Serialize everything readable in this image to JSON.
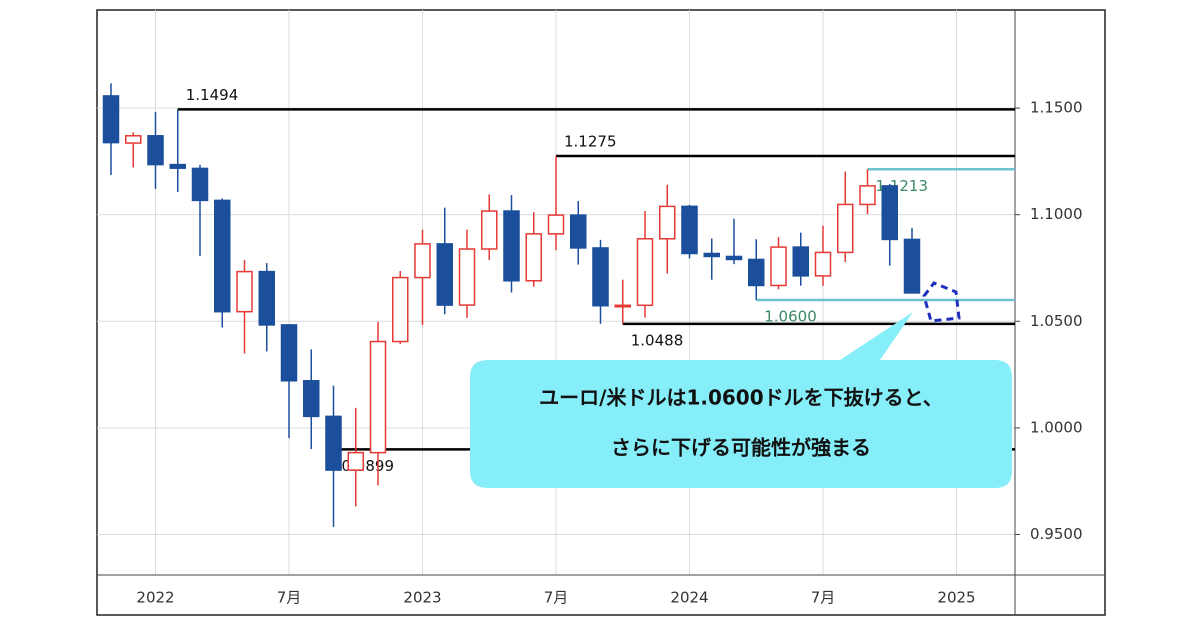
{
  "chart_data": {
    "type": "candlestick",
    "x": [
      "2021-11",
      "2021-12",
      "2022-01",
      "2022-02",
      "2022-03",
      "2022-04",
      "2022-05",
      "2022-06",
      "2022-07",
      "2022-08",
      "2022-09",
      "2022-10",
      "2022-11",
      "2022-12",
      "2023-01",
      "2023-02",
      "2023-03",
      "2023-04",
      "2023-05",
      "2023-06",
      "2023-07",
      "2023-08",
      "2023-09",
      "2023-10",
      "2023-11",
      "2023-12",
      "2024-01",
      "2024-02",
      "2024-03",
      "2024-04",
      "2024-05",
      "2024-06",
      "2024-07",
      "2024-08",
      "2024-09",
      "2024-10",
      "2024-11"
    ],
    "open": [
      1.1557,
      1.1336,
      1.137,
      1.1235,
      1.1217,
      1.1067,
      1.0545,
      1.0733,
      1.0483,
      1.0221,
      1.0054,
      0.9802,
      0.9884,
      1.0405,
      1.0705,
      1.0863,
      1.0576,
      1.0839,
      1.1017,
      1.069,
      1.091,
      1.0998,
      1.0844,
      1.0573,
      1.0575,
      1.0887,
      1.1039,
      1.0818,
      1.0804,
      1.079,
      1.0668,
      1.0848,
      1.0713,
      1.0823,
      1.1048,
      1.1135,
      1.0884
    ],
    "high": [
      1.1616,
      1.1386,
      1.1482,
      1.1494,
      1.1234,
      1.1076,
      1.0787,
      1.0773,
      1.0486,
      1.0368,
      1.0198,
      1.0094,
      1.0497,
      1.0736,
      1.0929,
      1.1033,
      1.093,
      1.1095,
      1.1092,
      1.1012,
      1.1275,
      1.1064,
      1.0882,
      1.0695,
      1.1017,
      1.114,
      1.1046,
      1.0888,
      1.0981,
      1.0885,
      1.0895,
      1.0916,
      1.0948,
      1.1202,
      1.1213,
      1.1144,
      1.0937
    ],
    "low": [
      1.1186,
      1.1222,
      1.1121,
      1.1106,
      1.0806,
      1.0471,
      1.0349,
      1.0359,
      0.9952,
      0.9901,
      0.9536,
      0.9632,
      0.973,
      1.0393,
      1.0483,
      1.0533,
      1.0516,
      1.0788,
      1.0635,
      1.0662,
      1.0834,
      1.0766,
      1.0488,
      1.0488,
      1.0517,
      1.0724,
      1.0795,
      1.0695,
      1.0768,
      1.06,
      1.065,
      1.0667,
      1.0666,
      1.0778,
      1.1002,
      1.0761,
      1.063
    ],
    "close": [
      1.1338,
      1.137,
      1.1235,
      1.1218,
      1.1067,
      1.0545,
      1.0733,
      1.0483,
      1.0221,
      1.0054,
      0.9802,
      0.9884,
      1.0405,
      1.0705,
      1.0863,
      1.0576,
      1.0839,
      1.1017,
      1.069,
      1.091,
      1.0998,
      1.0844,
      1.0573,
      1.0575,
      1.0887,
      1.1039,
      1.0818,
      1.0804,
      1.079,
      1.0668,
      1.0848,
      1.0713,
      1.0823,
      1.1048,
      1.1135,
      1.0884,
      1.0633
    ],
    "up_color": "#e53935",
    "down_color": "#1b4f9c",
    "ylim": [
      0.931,
      1.196
    ],
    "yticks": [
      {
        "value": 0.95,
        "label": "0.9500"
      },
      {
        "value": 1.0,
        "label": "1.0000"
      },
      {
        "value": 1.05,
        "label": "1.0500"
      },
      {
        "value": 1.1,
        "label": "1.1000"
      },
      {
        "value": 1.15,
        "label": "1.1500"
      }
    ],
    "xticks": [
      {
        "value": "2022-01",
        "label": "2022"
      },
      {
        "value": "2022-07",
        "label": "7月"
      },
      {
        "value": "2023-01",
        "label": "2023"
      },
      {
        "value": "2023-07",
        "label": "7月"
      },
      {
        "value": "2024-01",
        "label": "2024"
      },
      {
        "value": "2024-07",
        "label": "7月"
      },
      {
        "value": "2025-01",
        "label": "2025"
      }
    ],
    "grid": true,
    "levels": [
      {
        "value": 1.1494,
        "start": "2022-02",
        "color": "#000000",
        "label_position": "above"
      },
      {
        "value": 1.1275,
        "start": "2023-07",
        "color": "#000000",
        "label_position": "above"
      },
      {
        "value": 1.1213,
        "start": "2024-09",
        "color": "#6cc3cf",
        "label_color": "#3b8a66",
        "label_position": "below"
      },
      {
        "value": 1.06,
        "label": "1.0600",
        "start": "2024-04",
        "color": "#6cc3cf",
        "label_color": "#3b8a66",
        "label_position": "below"
      },
      {
        "value": 1.0488,
        "start": "2023-10",
        "color": "#000000",
        "label_position": "below"
      },
      {
        "value": 0.9899,
        "start": "2022-09",
        "color": "#000000",
        "label_position": "below"
      }
    ],
    "annotation": [
      "ユーロ/米ドルは1.0600ドルを下抜けると、",
      "さらに下げる可能性が強まる"
    ]
  }
}
